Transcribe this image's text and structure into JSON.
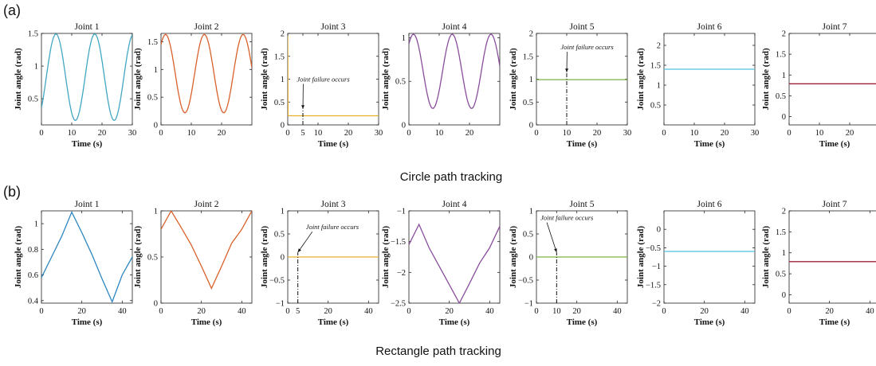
{
  "figure": {
    "panel_a_label": "(a)",
    "panel_b_label": "(b)",
    "caption_a": "Circle path tracking",
    "caption_b": "Rectangle path tracking"
  },
  "chart_data": [
    {
      "type": "line",
      "row": "a",
      "title": "Joint 1",
      "xlabel": "Time (s)",
      "ylabel": "",
      "xlim": [
        0,
        30
      ],
      "ylim": [
        0.1,
        1.5
      ],
      "xticks": [
        0,
        10,
        20,
        30
      ],
      "yticks": [
        0.5,
        1,
        1.5
      ],
      "color": "#41a6c4",
      "series": [
        {
          "kind": "sine",
          "x0": 0,
          "x1": 30,
          "ymin": 0.17,
          "ymax": 1.49,
          "y0": 0.28,
          "period": 12.8,
          "peak_x": 4.8
        }
      ]
    },
    {
      "type": "line",
      "row": "a",
      "title": "Joint 2",
      "xlabel": "",
      "ylabel": "",
      "xlim": [
        0,
        30
      ],
      "ylim": [
        0.0,
        1.65
      ],
      "xticks": [
        0,
        10,
        20
      ],
      "yticks": [
        0,
        0.5,
        1,
        1.5
      ],
      "color": "#d9602a",
      "series": [
        {
          "kind": "sine",
          "x0": 0,
          "x1": 30,
          "ymin": 0.22,
          "ymax": 1.63,
          "y0": 1.3,
          "period": 12.8,
          "peak_x": 1.5
        }
      ]
    },
    {
      "type": "line",
      "row": "a",
      "title": "Joint 3",
      "xlabel": "Time (s)",
      "ylabel": "",
      "xlim": [
        0,
        30
      ],
      "ylim": [
        0,
        2
      ],
      "xticks": [
        0,
        5,
        10,
        20,
        30
      ],
      "yticks": [
        0,
        0.5,
        1,
        1.5,
        2
      ],
      "color": "#e6b02e",
      "series": [
        {
          "kind": "points",
          "x": [
            0,
            0.1,
            30
          ],
          "y": [
            1.95,
            0.2,
            0.2
          ]
        }
      ],
      "failure": {
        "x": 5,
        "y_bottom": 0,
        "y_top": 0.35,
        "label": "Joint failure occurs",
        "text_x": 3,
        "text_y": 0.95
      }
    },
    {
      "type": "line",
      "row": "a",
      "title": "Joint 4",
      "xlabel": "",
      "ylabel": "",
      "xlim": [
        0,
        30
      ],
      "ylim": [
        0,
        1.05
      ],
      "xticks": [
        0,
        10,
        20
      ],
      "yticks": [
        0,
        0.5,
        1
      ],
      "color": "#8a4d9c",
      "series": [
        {
          "kind": "sine",
          "x0": 0,
          "x1": 30,
          "ymin": 0.19,
          "ymax": 1.04,
          "y0": 0.95,
          "period": 12.8,
          "peak_x": 1.5
        }
      ]
    },
    {
      "type": "line",
      "row": "a",
      "title": "Joint 5",
      "xlabel": "Time (s)",
      "ylabel": "",
      "xlim": [
        0,
        30
      ],
      "ylim": [
        0,
        2
      ],
      "xticks": [
        0,
        10,
        20,
        30
      ],
      "yticks": [
        0,
        0.5,
        1,
        1.5,
        2
      ],
      "color": "#7cb342",
      "series": [
        {
          "kind": "points",
          "x": [
            0,
            30
          ],
          "y": [
            0.99,
            0.99
          ]
        }
      ],
      "failure": {
        "x": 10,
        "y_bottom": 0,
        "y_top": 1.15,
        "label": "Joint failure occurs",
        "text_x": 8,
        "text_y": 1.65
      }
    },
    {
      "type": "line",
      "row": "a",
      "title": "Joint 6",
      "xlabel": "Time (s)",
      "ylabel": "",
      "xlim": [
        0,
        30
      ],
      "ylim": [
        0,
        2.3
      ],
      "xticks": [
        0,
        10,
        20,
        30
      ],
      "yticks": [
        0.5,
        1,
        1.5,
        2
      ],
      "color": "#4fc1e0",
      "series": [
        {
          "kind": "points",
          "x": [
            0,
            30
          ],
          "y": [
            1.4,
            1.4
          ]
        }
      ]
    },
    {
      "type": "line",
      "row": "a",
      "title": "Joint 7",
      "xlabel": "Time (s)",
      "ylabel": "",
      "xlim": [
        0,
        30
      ],
      "ylim": [
        -0.2,
        2
      ],
      "xticks": [
        0,
        10,
        20,
        30
      ],
      "yticks": [
        0,
        0.5,
        1,
        1.5,
        2
      ],
      "color": "#a0203a",
      "series": [
        {
          "kind": "points",
          "x": [
            0,
            30
          ],
          "y": [
            0.79,
            0.79
          ]
        }
      ]
    },
    {
      "type": "line",
      "row": "b",
      "title": "Joint 1",
      "xlabel": "Time (s)",
      "ylabel": "",
      "xlim": [
        0,
        45
      ],
      "ylim": [
        0.38,
        1.1
      ],
      "xticks": [
        0,
        20,
        40
      ],
      "yticks": [
        0.4,
        0.6,
        0.8,
        1
      ],
      "color": "#2e86c1",
      "series": [
        {
          "kind": "points",
          "x": [
            0,
            5,
            10,
            15,
            20,
            25,
            30,
            35,
            40,
            45
          ],
          "y": [
            0.58,
            0.74,
            0.9,
            1.09,
            0.93,
            0.76,
            0.57,
            0.39,
            0.6,
            0.74
          ]
        }
      ]
    },
    {
      "type": "line",
      "row": "b",
      "title": "Joint 2",
      "xlabel": "Time (s)",
      "ylabel": "",
      "xlim": [
        0,
        45
      ],
      "ylim": [
        0,
        1
      ],
      "xticks": [
        0,
        20,
        40
      ],
      "yticks": [
        0,
        0.5,
        1
      ],
      "color": "#d9602a",
      "series": [
        {
          "kind": "points",
          "x": [
            0,
            5,
            10,
            15,
            20,
            25,
            30,
            35,
            40,
            45
          ],
          "y": [
            0.8,
            1.0,
            0.82,
            0.63,
            0.4,
            0.16,
            0.4,
            0.65,
            0.8,
            1.0
          ]
        }
      ]
    },
    {
      "type": "line",
      "row": "b",
      "title": "Joint 3",
      "xlabel": "Time (s)",
      "ylabel": "",
      "xlim": [
        0,
        45
      ],
      "ylim": [
        -1,
        1
      ],
      "xticks": [
        0,
        5,
        20,
        40
      ],
      "yticks": [
        -1,
        -0.5,
        0,
        0.5,
        1
      ],
      "color": "#e6b02e",
      "series": [
        {
          "kind": "points",
          "x": [
            0,
            45
          ],
          "y": [
            0,
            0
          ]
        }
      ],
      "failure": {
        "x": 5,
        "y_bottom": -1,
        "y_top": 0.1,
        "label": "Joint failure occurs",
        "text_x": 9,
        "text_y": 0.6
      }
    },
    {
      "type": "line",
      "row": "b",
      "title": "Joint 4",
      "xlabel": "Time (s)",
      "ylabel": "",
      "xlim": [
        0,
        45
      ],
      "ylim": [
        -2.5,
        -1
      ],
      "xticks": [
        0,
        20,
        40
      ],
      "yticks": [
        -2.5,
        -2,
        -1.5,
        -1
      ],
      "color": "#8a4d9c",
      "series": [
        {
          "kind": "points",
          "x": [
            0,
            5,
            10,
            15,
            20,
            25,
            30,
            35,
            40,
            45
          ],
          "y": [
            -1.55,
            -1.22,
            -1.6,
            -1.9,
            -2.2,
            -2.5,
            -2.18,
            -1.85,
            -1.6,
            -1.25
          ]
        }
      ]
    },
    {
      "type": "line",
      "row": "b",
      "title": "Joint 5",
      "xlabel": "Time (s)",
      "ylabel": "",
      "xlim": [
        0,
        45
      ],
      "ylim": [
        -1,
        1
      ],
      "xticks": [
        0,
        10,
        20,
        40
      ],
      "yticks": [
        -1,
        -0.5,
        0,
        0.5,
        1
      ],
      "color": "#7cb342",
      "series": [
        {
          "kind": "points",
          "x": [
            0,
            45
          ],
          "y": [
            0,
            0
          ]
        }
      ],
      "failure": {
        "x": 10,
        "y_bottom": -1,
        "y_top": 0.1,
        "label": "Joint failure occurs",
        "text_x": 2,
        "text_y": 0.8
      }
    },
    {
      "type": "line",
      "row": "b",
      "title": "Joint 6",
      "xlabel": "Time (s)",
      "ylabel": "",
      "xlim": [
        0,
        45
      ],
      "ylim": [
        -2,
        0.5
      ],
      "xticks": [
        0,
        20,
        40
      ],
      "yticks": [
        -2,
        -1.5,
        -1,
        -0.5,
        0
      ],
      "color": "#4fc1e0",
      "series": [
        {
          "kind": "points",
          "x": [
            0,
            45
          ],
          "y": [
            -0.6,
            -0.6
          ]
        }
      ]
    },
    {
      "type": "line",
      "row": "b",
      "title": "Joint 7",
      "xlabel": "Time (s)",
      "ylabel": "",
      "xlim": [
        0,
        45
      ],
      "ylim": [
        -0.2,
        2
      ],
      "xticks": [
        0,
        20,
        40
      ],
      "yticks": [
        0,
        0.5,
        1,
        1.5,
        2
      ],
      "color": "#a0203a",
      "series": [
        {
          "kind": "points",
          "x": [
            0,
            45
          ],
          "y": [
            0.79,
            0.79
          ]
        }
      ]
    }
  ],
  "shared_ylabel": "Joint angle (rad)"
}
